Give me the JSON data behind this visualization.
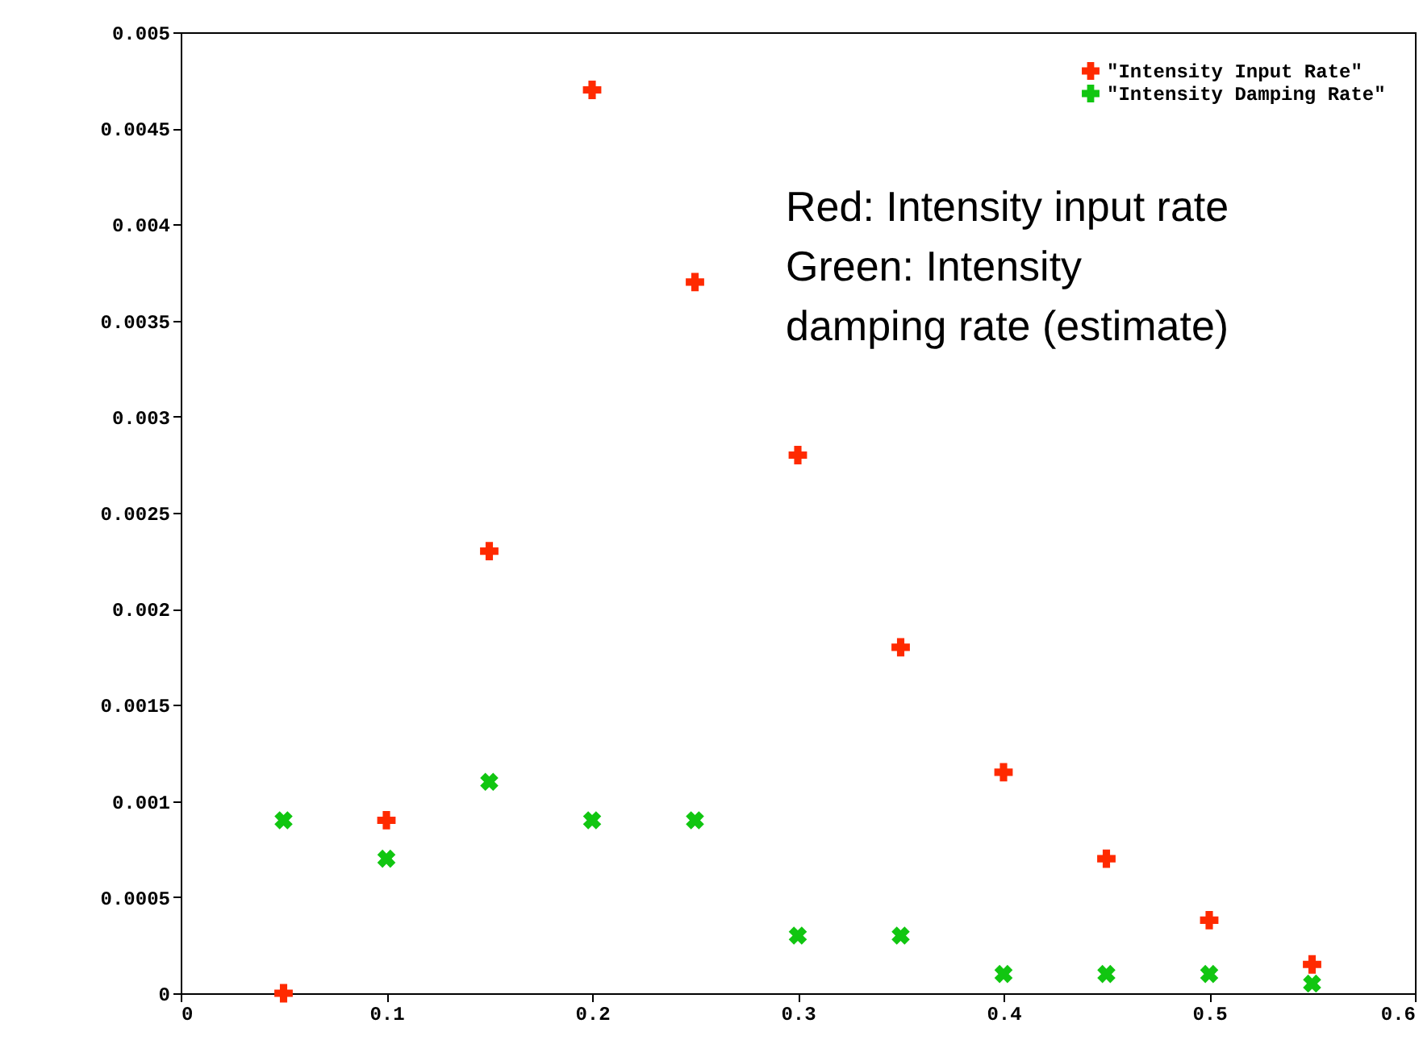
{
  "chart_data": {
    "type": "scatter",
    "x": [
      0.05,
      0.1,
      0.15,
      0.2,
      0.25,
      0.3,
      0.35,
      0.4,
      0.45,
      0.5,
      0.55
    ],
    "series": [
      {
        "name": "\"Intensity Input Rate\"",
        "color": "#ff2a00",
        "values": [
          0,
          0.0009,
          0.0023,
          0.0047,
          0.0037,
          0.0028,
          0.0018,
          0.00115,
          0.0007,
          0.00038,
          0.00015
        ]
      },
      {
        "name": "\"Intensity Damping Rate\"",
        "color": "#11c611",
        "values": [
          0.0009,
          0.0007,
          0.0011,
          0.0009,
          0.0009,
          0.0003,
          0.0003,
          0.0001,
          0.0001,
          0.0001,
          5e-05
        ]
      }
    ],
    "xlim": [
      0,
      0.6
    ],
    "xticks": [
      0,
      0.1,
      0.2,
      0.3,
      0.4,
      0.5,
      0.6
    ],
    "ylim": [
      0,
      0.005
    ],
    "yticks": [
      0,
      0.0005,
      0.001,
      0.0015,
      0.002,
      0.0025,
      0.003,
      0.0035,
      0.004,
      0.0045,
      0.005
    ],
    "grid": false,
    "legend": "top right",
    "marker": "cross",
    "annotations": [
      "Red: Intensity input rate",
      "Green: Intensity",
      "damping rate (estimate)"
    ]
  }
}
